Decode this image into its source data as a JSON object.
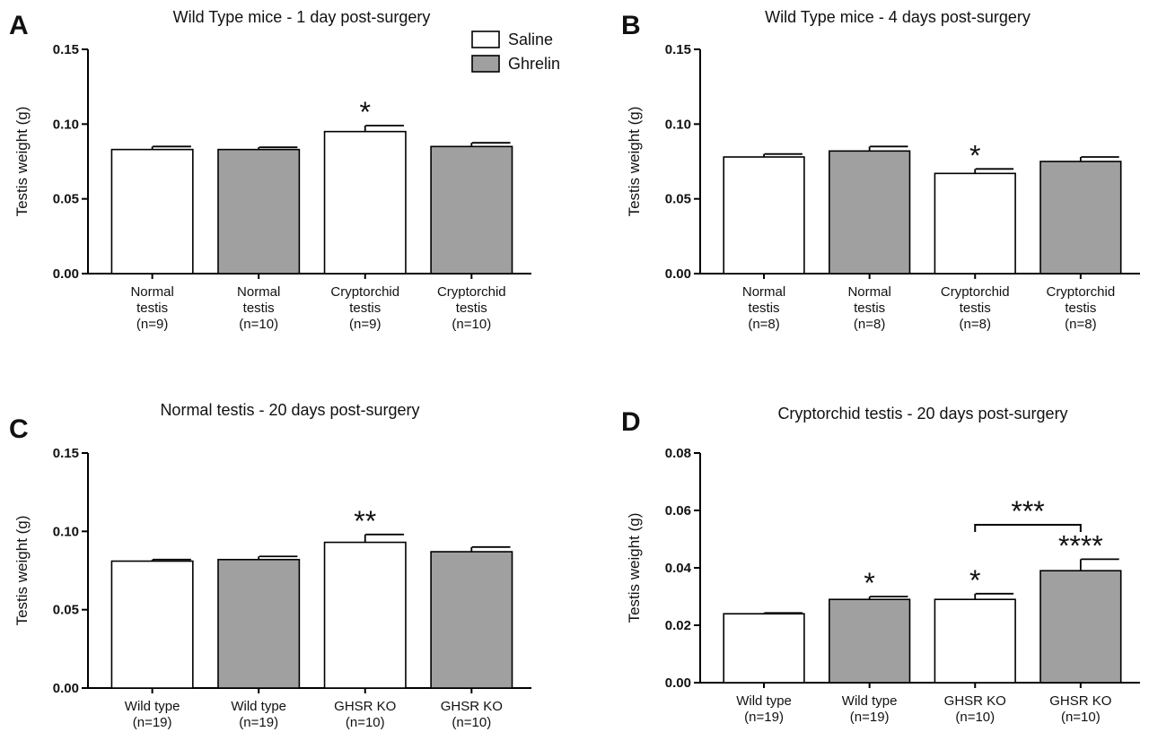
{
  "legend": {
    "items": [
      {
        "label": "Saline",
        "color": "#ffffff"
      },
      {
        "label": "Ghrelin",
        "color": "#a0a0a0"
      }
    ]
  },
  "chart_data": [
    {
      "panel": "A",
      "type": "bar",
      "title": "Wild Type mice - 1 day post-surgery",
      "ylabel": "Testis weight (g)",
      "ylim": [
        0,
        0.15
      ],
      "yticks": [
        "0.00",
        "0.05",
        "0.10",
        "0.15"
      ],
      "categories": [
        [
          "Normal",
          "testis",
          "(n=9)"
        ],
        [
          "Normal",
          "testis",
          "(n=10)"
        ],
        [
          "Cryptorchid",
          "testis",
          "(n=9)"
        ],
        [
          "Cryptorchid",
          "testis",
          "(n=10)"
        ]
      ],
      "groups": [
        "Saline",
        "Ghrelin",
        "Saline",
        "Ghrelin"
      ],
      "values": [
        0.083,
        0.083,
        0.095,
        0.085
      ],
      "errors": [
        0.002,
        0.0015,
        0.004,
        0.0025
      ],
      "annotations": [
        "",
        "",
        "*",
        ""
      ]
    },
    {
      "panel": "B",
      "type": "bar",
      "title": "Wild Type mice - 4 days post-surgery",
      "ylabel": "Testis weight (g)",
      "ylim": [
        0,
        0.15
      ],
      "yticks": [
        "0.00",
        "0.05",
        "0.10",
        "0.15"
      ],
      "categories": [
        [
          "Normal",
          "testis",
          "(n=8)"
        ],
        [
          "Normal",
          "testis",
          "(n=8)"
        ],
        [
          "Cryptorchid",
          "testis",
          "(n=8)"
        ],
        [
          "Cryptorchid",
          "testis",
          "(n=8)"
        ]
      ],
      "groups": [
        "Saline",
        "Ghrelin",
        "Saline",
        "Ghrelin"
      ],
      "values": [
        0.078,
        0.082,
        0.067,
        0.075
      ],
      "errors": [
        0.002,
        0.003,
        0.003,
        0.003
      ],
      "annotations": [
        "",
        "",
        "*",
        ""
      ]
    },
    {
      "panel": "C",
      "type": "bar",
      "title": "Normal testis - 20 days post-surgery",
      "ylabel": "Testis weight (g)",
      "ylim": [
        0,
        0.15
      ],
      "yticks": [
        "0.00",
        "0.05",
        "0.10",
        "0.15"
      ],
      "categories": [
        [
          "Wild type",
          "(n=19)"
        ],
        [
          "Wild type",
          "(n=19)"
        ],
        [
          "GHSR KO",
          "(n=10)"
        ],
        [
          "GHSR KO",
          "(n=10)"
        ]
      ],
      "groups": [
        "Saline",
        "Ghrelin",
        "Saline",
        "Ghrelin"
      ],
      "values": [
        0.081,
        0.082,
        0.093,
        0.087
      ],
      "errors": [
        0.001,
        0.002,
        0.005,
        0.003
      ],
      "annotations": [
        "",
        "",
        "**",
        ""
      ]
    },
    {
      "panel": "D",
      "type": "bar",
      "title": "Cryptorchid testis - 20 days post-surgery",
      "ylabel": "Testis weight (g)",
      "ylim": [
        0,
        0.08
      ],
      "yticks": [
        "0.00",
        "0.02",
        "0.04",
        "0.06",
        "0.08"
      ],
      "categories": [
        [
          "Wild type",
          "(n=19)"
        ],
        [
          "Wild type",
          "(n=19)"
        ],
        [
          "GHSR KO",
          "(n=10)"
        ],
        [
          "GHSR KO",
          "(n=10)"
        ]
      ],
      "groups": [
        "Saline",
        "Ghrelin",
        "Saline",
        "Ghrelin"
      ],
      "values": [
        0.024,
        0.029,
        0.029,
        0.039
      ],
      "errors": [
        0.0003,
        0.001,
        0.002,
        0.004
      ],
      "annotations": [
        "",
        "*",
        "*",
        "****"
      ],
      "bracket": {
        "from": 2,
        "to": 3,
        "label": "***"
      }
    }
  ]
}
